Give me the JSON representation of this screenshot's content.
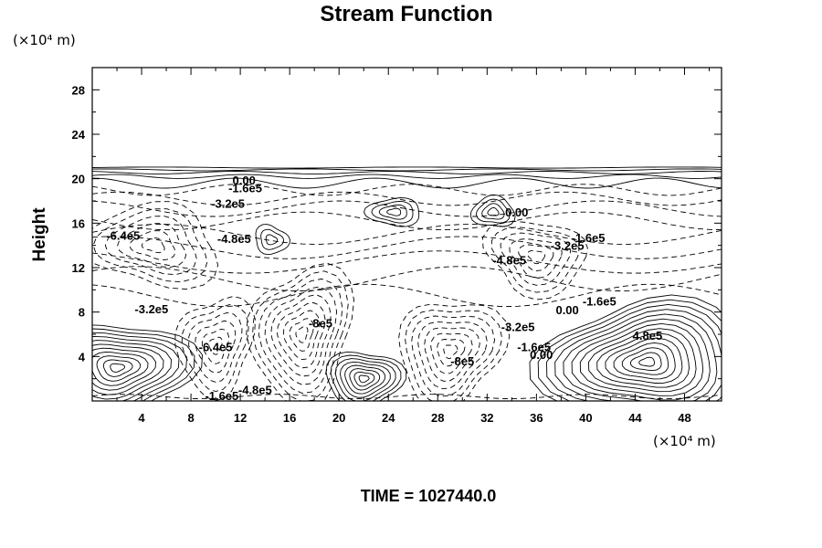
{
  "chart_data": {
    "type": "contour",
    "title": "Stream Function",
    "ylabel": "Height",
    "x_units": "(×10⁴ m)",
    "y_units": "(×10⁴ m)",
    "xlim": [
      0,
      51
    ],
    "ylim": [
      0,
      30
    ],
    "x_ticks": [
      4,
      8,
      12,
      16,
      20,
      24,
      28,
      32,
      36,
      40,
      44,
      48
    ],
    "y_ticks": [
      4,
      8,
      12,
      16,
      20,
      24,
      28
    ],
    "grid": false,
    "line_style": "solid for values >= 0, dashed for negative values",
    "contour_labels": [
      {
        "text": "0.00",
        "x": 12.3,
        "y": 19.5
      },
      {
        "text": "-1.6e5",
        "x": 12.4,
        "y": 18.8
      },
      {
        "text": "-3.2e5",
        "x": 11.0,
        "y": 17.4
      },
      {
        "text": "-6.4e5",
        "x": 2.5,
        "y": 14.5
      },
      {
        "text": "-4.8e5",
        "x": 11.5,
        "y": 14.2
      },
      {
        "text": "0.00",
        "x": 34.4,
        "y": 16.6
      },
      {
        "text": "-1.6e5",
        "x": 40.2,
        "y": 14.3
      },
      {
        "text": "-3.2e5",
        "x": 38.5,
        "y": 13.6
      },
      {
        "text": "-4.8e5",
        "x": 33.8,
        "y": 12.3
      },
      {
        "text": "-3.2e5",
        "x": 4.8,
        "y": 7.9
      },
      {
        "text": "-1.6e5",
        "x": 41.1,
        "y": 8.6
      },
      {
        "text": "0.00",
        "x": 38.5,
        "y": 7.8
      },
      {
        "text": "-8e5",
        "x": 18.5,
        "y": 6.6
      },
      {
        "text": "-6.4e5",
        "x": 10.0,
        "y": 4.5
      },
      {
        "text": "-3.2e5",
        "x": 34.5,
        "y": 6.3
      },
      {
        "text": "-1.6e5",
        "x": 35.8,
        "y": 4.5
      },
      {
        "text": "0.00",
        "x": 36.4,
        "y": 3.8
      },
      {
        "text": "4.8e5",
        "x": 45.0,
        "y": 5.5
      },
      {
        "text": "-8e5",
        "x": 30.0,
        "y": 3.2
      },
      {
        "text": "-4.8e5",
        "x": 13.2,
        "y": 0.6
      },
      {
        "text": "-1.6e5",
        "x": 10.5,
        "y": 0.1
      }
    ],
    "positive_centers": [
      {
        "x": 2.0,
        "y": 3.0
      },
      {
        "x": 22.0,
        "y": 2.0
      },
      {
        "x": 45.0,
        "y": 3.5
      },
      {
        "x": 24.5,
        "y": 17.0
      },
      {
        "x": 32.5,
        "y": 17.0
      },
      {
        "x": 14.5,
        "y": 14.5
      }
    ],
    "negative_centers": [
      {
        "x": 17.0,
        "y": 6.0
      },
      {
        "x": 29.0,
        "y": 4.5
      },
      {
        "x": 10.0,
        "y": 5.0
      },
      {
        "x": 5.0,
        "y": 14.0
      },
      {
        "x": 36.0,
        "y": 13.0
      }
    ]
  },
  "time_label": "TIME = 1027440.0"
}
